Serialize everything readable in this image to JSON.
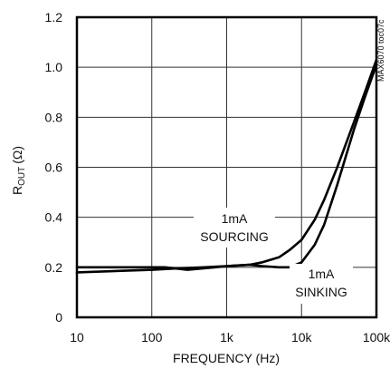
{
  "chart_data": {
    "type": "line",
    "title": "",
    "xlabel": "FREQUENCY (Hz)",
    "ylabel": {
      "main": "R",
      "sub": "OUT",
      "unit": "(Ω)"
    },
    "x_scale": "log",
    "xlim": [
      10,
      100000
    ],
    "ylim": [
      0,
      1.2
    ],
    "x_ticks": [
      {
        "value": 10,
        "label": "10"
      },
      {
        "value": 100,
        "label": "100"
      },
      {
        "value": 1000,
        "label": "1k"
      },
      {
        "value": 10000,
        "label": "10k"
      },
      {
        "value": 100000,
        "label": "100k"
      }
    ],
    "y_ticks": [
      {
        "value": 0,
        "label": "0"
      },
      {
        "value": 0.2,
        "label": "0.2"
      },
      {
        "value": 0.4,
        "label": "0.4"
      },
      {
        "value": 0.6,
        "label": "0.6"
      },
      {
        "value": 0.8,
        "label": "0.8"
      },
      {
        "value": 1.0,
        "label": "1.0"
      },
      {
        "value": 1.2,
        "label": "1.2"
      }
    ],
    "grid": true,
    "series": [
      {
        "name": "1mA SOURCING",
        "x": [
          10,
          100,
          150,
          300,
          700,
          1000,
          2000,
          3000,
          5000,
          7000,
          10000,
          15000,
          20000,
          30000,
          50000,
          70000,
          100000
        ],
        "y": [
          0.2,
          0.2,
          0.2,
          0.19,
          0.2,
          0.205,
          0.21,
          0.22,
          0.24,
          0.27,
          0.31,
          0.39,
          0.47,
          0.6,
          0.78,
          0.9,
          1.03
        ]
      },
      {
        "name": "1mA SINKING",
        "x": [
          10,
          100,
          200,
          500,
          1000,
          2000,
          3000,
          5000,
          7000,
          10000,
          15000,
          20000,
          30000,
          50000,
          70000,
          100000
        ],
        "y": [
          0.18,
          0.19,
          0.195,
          0.2,
          0.205,
          0.21,
          0.205,
          0.2,
          0.2,
          0.22,
          0.29,
          0.37,
          0.53,
          0.75,
          0.88,
          1.01
        ]
      }
    ],
    "annotations": [
      {
        "lines": [
          "1mA",
          "SOURCING"
        ]
      },
      {
        "lines": [
          "1mA",
          "SINKING"
        ]
      }
    ],
    "side_text": "MAX6070 toc07c"
  }
}
